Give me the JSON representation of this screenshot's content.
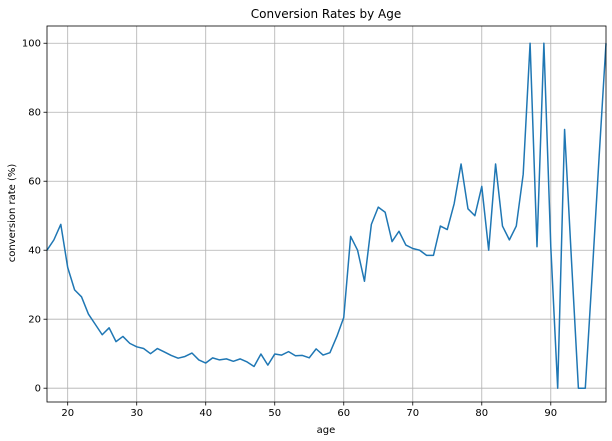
{
  "chart_data": {
    "type": "line",
    "title": "Conversion Rates by Age",
    "xlabel": "age",
    "ylabel": "conversion rate (%)",
    "xlim": [
      17,
      98
    ],
    "ylim": [
      -4,
      105
    ],
    "xticks": [
      20,
      30,
      40,
      50,
      60,
      70,
      80,
      90
    ],
    "yticks": [
      0,
      20,
      40,
      60,
      80,
      100
    ],
    "grid": true,
    "line_color": "#1f77b4",
    "series": [
      {
        "x": [
          17,
          18,
          19,
          20,
          21,
          22,
          23,
          24,
          25,
          26,
          27,
          28,
          29,
          30,
          31,
          32,
          33,
          34,
          35,
          36,
          37,
          38,
          39,
          40,
          41,
          42,
          43,
          44,
          45,
          46,
          47,
          48,
          49,
          50,
          51,
          52,
          53,
          54,
          55,
          56,
          57,
          58,
          59,
          60,
          61,
          62,
          63,
          64,
          65,
          66,
          67,
          68,
          69,
          70,
          71,
          72,
          73,
          74,
          75,
          76,
          77,
          78,
          79,
          80,
          81,
          82,
          83,
          84,
          85,
          86,
          87,
          88,
          89,
          90,
          91,
          92,
          93,
          94,
          95,
          96,
          97,
          98
        ],
        "y": [
          40.0,
          43.0,
          47.5,
          35.0,
          28.5,
          26.5,
          21.5,
          18.5,
          15.5,
          17.5,
          13.5,
          15.0,
          13.0,
          12.0,
          11.5,
          10.0,
          11.5,
          10.5,
          9.5,
          8.7,
          9.2,
          10.2,
          8.2,
          7.3,
          8.8,
          8.2,
          8.5,
          7.8,
          8.5,
          7.6,
          6.3,
          9.9,
          6.7,
          9.9,
          9.6,
          10.6,
          9.4,
          9.5,
          8.8,
          11.4,
          9.6,
          10.3,
          15.0,
          20.5,
          44.0,
          40.0,
          31.0,
          47.5,
          52.5,
          51.0,
          42.5,
          45.5,
          41.5,
          40.5,
          40.0,
          38.5,
          38.5,
          47.0,
          46.0,
          53.5,
          65.0,
          52.0,
          50.0,
          58.5,
          40.0,
          65.0,
          47.0,
          43.0,
          47.0,
          62.0,
          100.0,
          41.0,
          100.0,
          41.0,
          0.0,
          75.0,
          37.0,
          0.0,
          0.0,
          33.0,
          67.0,
          100.0
        ]
      }
    ]
  }
}
